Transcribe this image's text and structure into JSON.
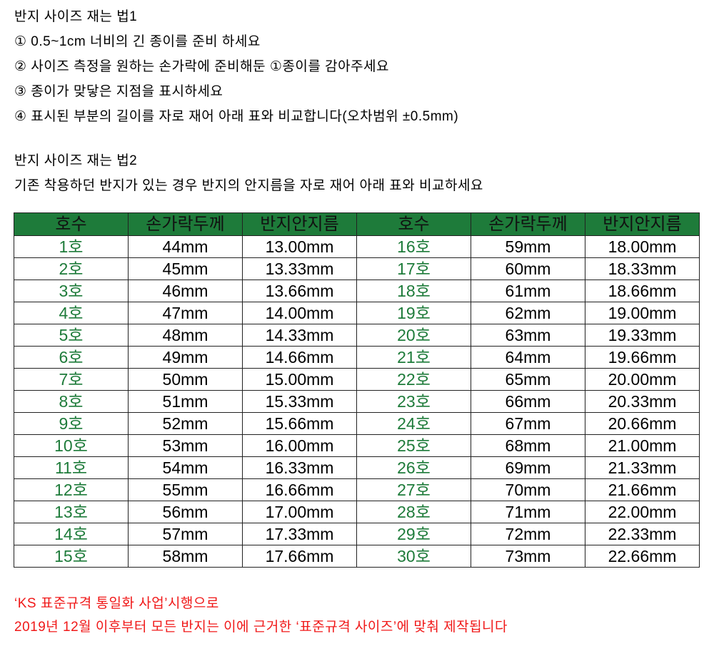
{
  "method1": {
    "title": "반지 사이즈 재는 법1",
    "steps": [
      "① 0.5~1cm 너비의 긴 종이를 준비 하세요",
      "② 사이즈 측정을 원하는 손가락에 준비해둔 ①종이를 감아주세요",
      "③ 종이가 맞닿은 지점을 표시하세요",
      "④ 표시된 부분의 길이를 자로 재어 아래 표와 비교합니다(오차범위 ±0.5mm)"
    ]
  },
  "method2": {
    "title": "반지 사이즈 재는 법2",
    "text": "기존 착용하던 반지가 있는 경우 반지의 안지름을 자로 재어 아래 표와 비교하세요"
  },
  "table": {
    "headers": [
      "호수",
      "손가락두께",
      "반지안지름",
      "호수",
      "손가락두께",
      "반지안지름"
    ],
    "rows": [
      [
        "1호",
        "44mm",
        "13.00mm",
        "16호",
        "59mm",
        "18.00mm"
      ],
      [
        "2호",
        "45mm",
        "13.33mm",
        "17호",
        "60mm",
        "18.33mm"
      ],
      [
        "3호",
        "46mm",
        "13.66mm",
        "18호",
        "61mm",
        "18.66mm"
      ],
      [
        "4호",
        "47mm",
        "14.00mm",
        "19호",
        "62mm",
        "19.00mm"
      ],
      [
        "5호",
        "48mm",
        "14.33mm",
        "20호",
        "63mm",
        "19.33mm"
      ],
      [
        "6호",
        "49mm",
        "14.66mm",
        "21호",
        "64mm",
        "19.66mm"
      ],
      [
        "7호",
        "50mm",
        "15.00mm",
        "22호",
        "65mm",
        "20.00mm"
      ],
      [
        "8호",
        "51mm",
        "15.33mm",
        "23호",
        "66mm",
        "20.33mm"
      ],
      [
        "9호",
        "52mm",
        "15.66mm",
        "24호",
        "67mm",
        "20.66mm"
      ],
      [
        "10호",
        "53mm",
        "16.00mm",
        "25호",
        "68mm",
        "21.00mm"
      ],
      [
        "11호",
        "54mm",
        "16.33mm",
        "26호",
        "69mm",
        "21.33mm"
      ],
      [
        "12호",
        "55mm",
        "16.66mm",
        "27호",
        "70mm",
        "21.66mm"
      ],
      [
        "13호",
        "56mm",
        "17.00mm",
        "28호",
        "71mm",
        "22.00mm"
      ],
      [
        "14호",
        "57mm",
        "17.33mm",
        "29호",
        "72mm",
        "22.33mm"
      ],
      [
        "15호",
        "58mm",
        "17.66mm",
        "30호",
        "73mm",
        "22.66mm"
      ]
    ]
  },
  "notice": [
    "‘KS 표준규격 통일화 사업’시행으로",
    "2019년 12월 이후부터 모든 반지는 이에 근거한 ‘표준규격 사이즈’에 맞춰 제작됩니다"
  ],
  "colors": {
    "header_bg": "#1e7b3a",
    "size_text": "#1e7b3a",
    "notice_text": "#f01818"
  }
}
